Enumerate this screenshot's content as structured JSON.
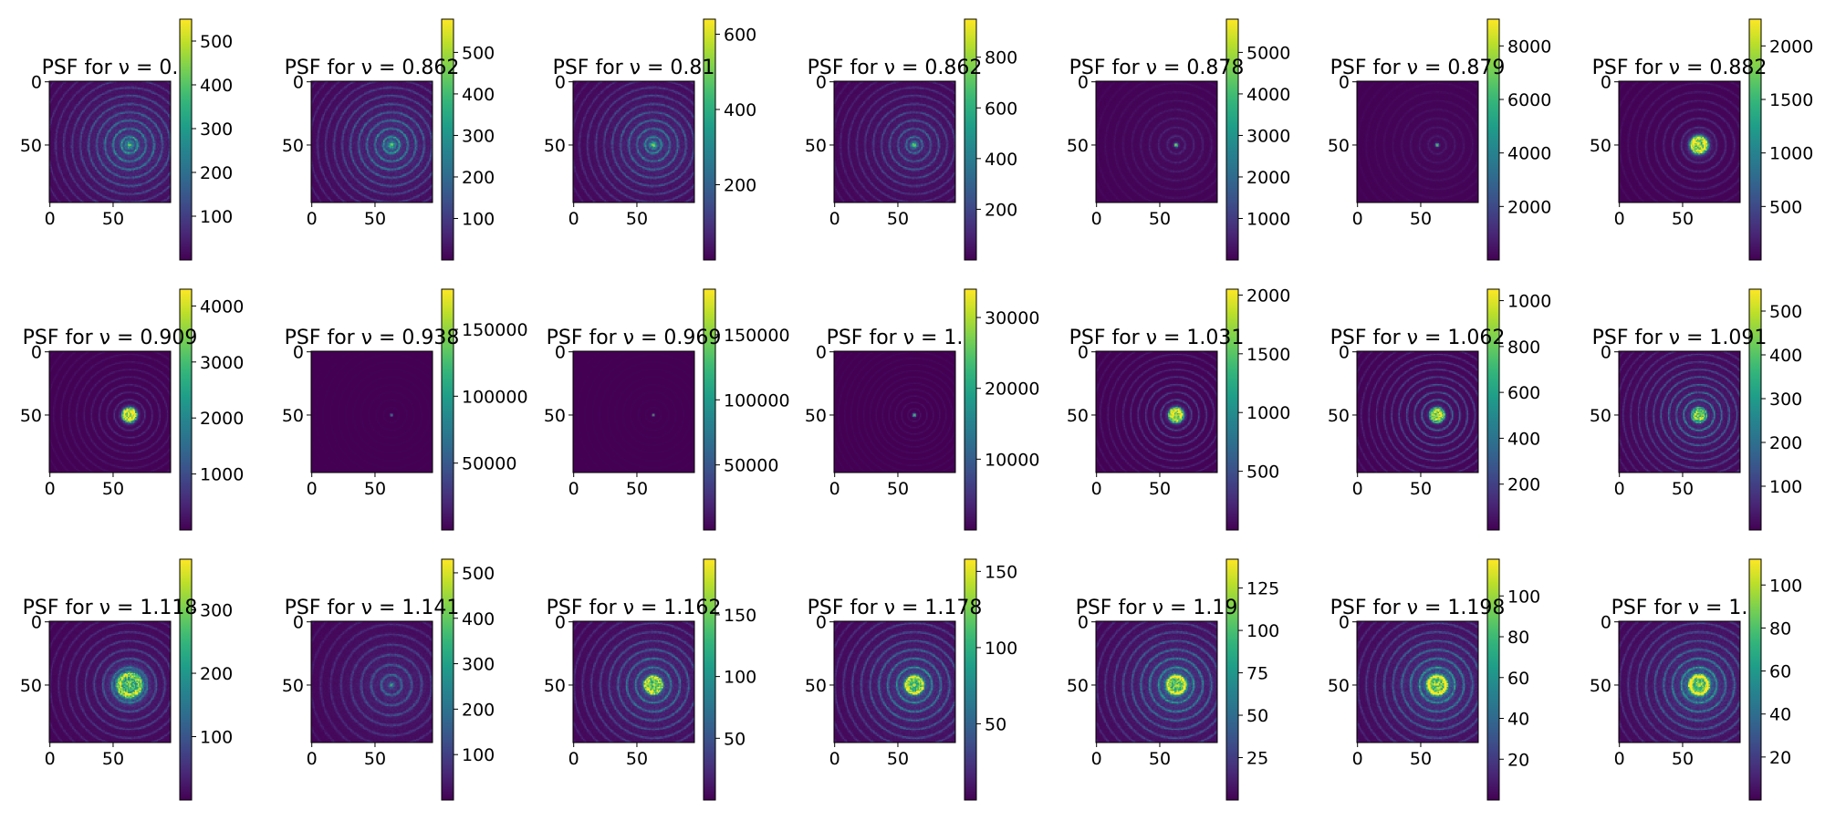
{
  "figure": {
    "colormap": "viridis",
    "background": "#ffffff",
    "axis_color": "#000000"
  },
  "chart_data": [
    {
      "type": "heatmap",
      "title": "PSF for ν = 0.",
      "xticks": [
        "0",
        "50"
      ],
      "yticks": [
        "0",
        "50"
      ],
      "colorbar_ticks": [
        "100",
        "200",
        "300",
        "400",
        "500"
      ],
      "colorbar_range": [
        0,
        550
      ],
      "pattern": {
        "core": 0.45,
        "rings": 0.55,
        "halo": 0.32,
        "ring_period": 6.5,
        "core_size": 2.5
      }
    },
    {
      "type": "heatmap",
      "title": "PSF for ν = 0.862",
      "xticks": [
        "0",
        "50"
      ],
      "yticks": [
        "0",
        "50"
      ],
      "colorbar_ticks": [
        "100",
        "200",
        "300",
        "400",
        "500"
      ],
      "colorbar_range": [
        0,
        580
      ],
      "pattern": {
        "core": 0.45,
        "rings": 0.55,
        "halo": 0.3,
        "ring_period": 6.5,
        "core_size": 2.5
      }
    },
    {
      "type": "heatmap",
      "title": "PSF for ν = 0.81",
      "xticks": [
        "0",
        "50"
      ],
      "yticks": [
        "0",
        "50"
      ],
      "colorbar_ticks": [
        "200",
        "400",
        "600"
      ],
      "colorbar_range": [
        0,
        640
      ],
      "pattern": {
        "core": 0.5,
        "rings": 0.5,
        "halo": 0.28,
        "ring_period": 6.5,
        "core_size": 2.2
      }
    },
    {
      "type": "heatmap",
      "title": "PSF for ν = 0.862",
      "xticks": [
        "0",
        "50"
      ],
      "yticks": [
        "0",
        "50"
      ],
      "colorbar_ticks": [
        "200",
        "400",
        "600",
        "800"
      ],
      "colorbar_range": [
        0,
        950
      ],
      "pattern": {
        "core": 0.7,
        "rings": 0.4,
        "halo": 0.2,
        "ring_period": 6.5,
        "core_size": 1.8
      }
    },
    {
      "type": "heatmap",
      "title": "PSF for ν = 0.878",
      "xticks": [
        "0",
        "50"
      ],
      "yticks": [
        "0",
        "50"
      ],
      "colorbar_ticks": [
        "1000",
        "2000",
        "3000",
        "4000",
        "5000"
      ],
      "colorbar_range": [
        0,
        5800
      ],
      "pattern": {
        "core": 1.0,
        "rings": 0.12,
        "halo": 0.06,
        "ring_period": 7,
        "core_size": 1.0
      }
    },
    {
      "type": "heatmap",
      "title": "PSF for ν = 0.879",
      "xticks": [
        "0",
        "50"
      ],
      "yticks": [
        "0",
        "50"
      ],
      "colorbar_ticks": [
        "2000",
        "4000",
        "6000",
        "8000"
      ],
      "colorbar_range": [
        0,
        9000
      ],
      "pattern": {
        "core": 1.0,
        "rings": 0.08,
        "halo": 0.04,
        "ring_period": 7,
        "core_size": 0.9
      }
    },
    {
      "type": "heatmap",
      "title": "PSF for ν = 0.882",
      "xticks": [
        "0",
        "50"
      ],
      "yticks": [
        "0",
        "50"
      ],
      "colorbar_ticks": [
        "500",
        "1000",
        "1500",
        "2000"
      ],
      "colorbar_range": [
        0,
        2250
      ],
      "pattern": {
        "core": 0.85,
        "rings": 0.2,
        "halo": 0.05,
        "ring_period": 7,
        "core_size": 4.5,
        "core_ring": true
      }
    },
    {
      "type": "heatmap",
      "title": "PSF for ν = 0.909",
      "xticks": [
        "0",
        "50"
      ],
      "yticks": [
        "0",
        "50"
      ],
      "colorbar_ticks": [
        "1000",
        "2000",
        "3000",
        "4000"
      ],
      "colorbar_range": [
        0,
        4300
      ],
      "pattern": {
        "core": 0.9,
        "rings": 0.18,
        "halo": 0.03,
        "ring_period": 6,
        "core_size": 3.5,
        "core_ring": true
      }
    },
    {
      "type": "heatmap",
      "title": "PSF for ν = 0.938",
      "xticks": [
        "0",
        "50"
      ],
      "yticks": [
        "0",
        "50"
      ],
      "colorbar_ticks": [
        "50000",
        "100000",
        "150000"
      ],
      "colorbar_range": [
        0,
        180000
      ],
      "pattern": {
        "core": 1.0,
        "rings": 0.01,
        "halo": 0.0,
        "ring_period": 6,
        "core_size": 0.6
      }
    },
    {
      "type": "heatmap",
      "title": "PSF for ν = 0.969",
      "xticks": [
        "0",
        "50"
      ],
      "yticks": [
        "0",
        "50"
      ],
      "colorbar_ticks": [
        "50000",
        "100000",
        "150000"
      ],
      "colorbar_range": [
        0,
        185000
      ],
      "pattern": {
        "core": 1.0,
        "rings": 0.01,
        "halo": 0.0,
        "ring_period": 6,
        "core_size": 0.6
      }
    },
    {
      "type": "heatmap",
      "title": "PSF for ν = 1.",
      "xticks": [
        "0",
        "50"
      ],
      "yticks": [
        "0",
        "50"
      ],
      "colorbar_ticks": [
        "10000",
        "20000",
        "30000"
      ],
      "colorbar_range": [
        0,
        34000
      ],
      "pattern": {
        "core": 1.0,
        "rings": 0.06,
        "halo": 0.0,
        "ring_period": 5,
        "core_size": 0.9
      }
    },
    {
      "type": "heatmap",
      "title": "PSF for ν = 1.031",
      "xticks": [
        "0",
        "50"
      ],
      "yticks": [
        "0",
        "50"
      ],
      "colorbar_ticks": [
        "500",
        "1000",
        "1500",
        "2000"
      ],
      "colorbar_range": [
        0,
        2050
      ],
      "pattern": {
        "core": 0.85,
        "rings": 0.3,
        "halo": 0.05,
        "ring_period": 6,
        "core_size": 3.5,
        "core_ring": true
      }
    },
    {
      "type": "heatmap",
      "title": "PSF for ν = 1.062",
      "xticks": [
        "0",
        "50"
      ],
      "yticks": [
        "0",
        "50"
      ],
      "colorbar_ticks": [
        "200",
        "400",
        "600",
        "800",
        "1000"
      ],
      "colorbar_range": [
        0,
        1050
      ],
      "pattern": {
        "core": 0.75,
        "rings": 0.45,
        "halo": 0.1,
        "ring_period": 6,
        "core_size": 3.2,
        "core_ring": true
      }
    },
    {
      "type": "heatmap",
      "title": "PSF for ν = 1.091",
      "xticks": [
        "0",
        "50"
      ],
      "yticks": [
        "0",
        "50"
      ],
      "colorbar_ticks": [
        "100",
        "200",
        "300",
        "400",
        "500"
      ],
      "colorbar_range": [
        0,
        550
      ],
      "pattern": {
        "core": 0.6,
        "rings": 0.55,
        "halo": 0.2,
        "ring_period": 6,
        "core_size": 3.0,
        "core_ring": true
      }
    },
    {
      "type": "heatmap",
      "title": "PSF for ν = 1.118",
      "xticks": [
        "0",
        "50"
      ],
      "yticks": [
        "0",
        "50"
      ],
      "colorbar_ticks": [
        "100",
        "200",
        "300"
      ],
      "colorbar_range": [
        0,
        380
      ],
      "pattern": {
        "core": 0.65,
        "rings": 0.4,
        "halo": 0.18,
        "ring_period": 7,
        "core_size": 7.5,
        "core_ring": true
      }
    },
    {
      "type": "heatmap",
      "title": "PSF for ν = 1.141",
      "xticks": [
        "0",
        "50"
      ],
      "yticks": [
        "0",
        "50"
      ],
      "colorbar_ticks": [
        "100",
        "200",
        "300",
        "400",
        "500"
      ],
      "colorbar_range": [
        0,
        530
      ],
      "pattern": {
        "core": 0.35,
        "rings": 0.35,
        "halo": 0.22,
        "ring_period": 8,
        "core_size": 1.5
      }
    },
    {
      "type": "heatmap",
      "title": "PSF for ν = 1.162",
      "xticks": [
        "0",
        "50"
      ],
      "yticks": [
        "0",
        "50"
      ],
      "colorbar_ticks": [
        "50",
        "100",
        "150"
      ],
      "colorbar_range": [
        0,
        195
      ],
      "pattern": {
        "core": 0.6,
        "rings": 0.55,
        "halo": 0.3,
        "ring_period": 7,
        "core_size": 4.5,
        "core_ring": true
      }
    },
    {
      "type": "heatmap",
      "title": "PSF for ν = 1.178",
      "xticks": [
        "0",
        "50"
      ],
      "yticks": [
        "0",
        "50"
      ],
      "colorbar_ticks": [
        "50",
        "100",
        "150"
      ],
      "colorbar_range": [
        0,
        158
      ],
      "pattern": {
        "core": 0.6,
        "rings": 0.6,
        "halo": 0.32,
        "ring_period": 7,
        "core_size": 5.0,
        "core_ring": true
      }
    },
    {
      "type": "heatmap",
      "title": "PSF for ν = 1.19",
      "xticks": [
        "0",
        "50"
      ],
      "yticks": [
        "0",
        "50"
      ],
      "colorbar_ticks": [
        "25",
        "50",
        "75",
        "100",
        "125"
      ],
      "colorbar_range": [
        0,
        142
      ],
      "pattern": {
        "core": 0.6,
        "rings": 0.62,
        "halo": 0.35,
        "ring_period": 7,
        "core_size": 5.5,
        "core_ring": true
      }
    },
    {
      "type": "heatmap",
      "title": "PSF for ν = 1.198",
      "xticks": [
        "0",
        "50"
      ],
      "yticks": [
        "0",
        "50"
      ],
      "colorbar_ticks": [
        "20",
        "40",
        "60",
        "80",
        "100"
      ],
      "colorbar_range": [
        0,
        118
      ],
      "pattern": {
        "core": 0.62,
        "rings": 0.62,
        "halo": 0.35,
        "ring_period": 7,
        "core_size": 5.8,
        "core_ring": true
      }
    },
    {
      "type": "heatmap",
      "title": "PSF for ν = 1.",
      "xticks": [
        "0",
        "50"
      ],
      "yticks": [
        "0",
        "50"
      ],
      "colorbar_ticks": [
        "20",
        "40",
        "60",
        "80",
        "100"
      ],
      "colorbar_range": [
        0,
        112
      ],
      "pattern": {
        "core": 0.62,
        "rings": 0.62,
        "halo": 0.35,
        "ring_period": 7,
        "core_size": 6.0,
        "core_ring": true
      }
    }
  ]
}
